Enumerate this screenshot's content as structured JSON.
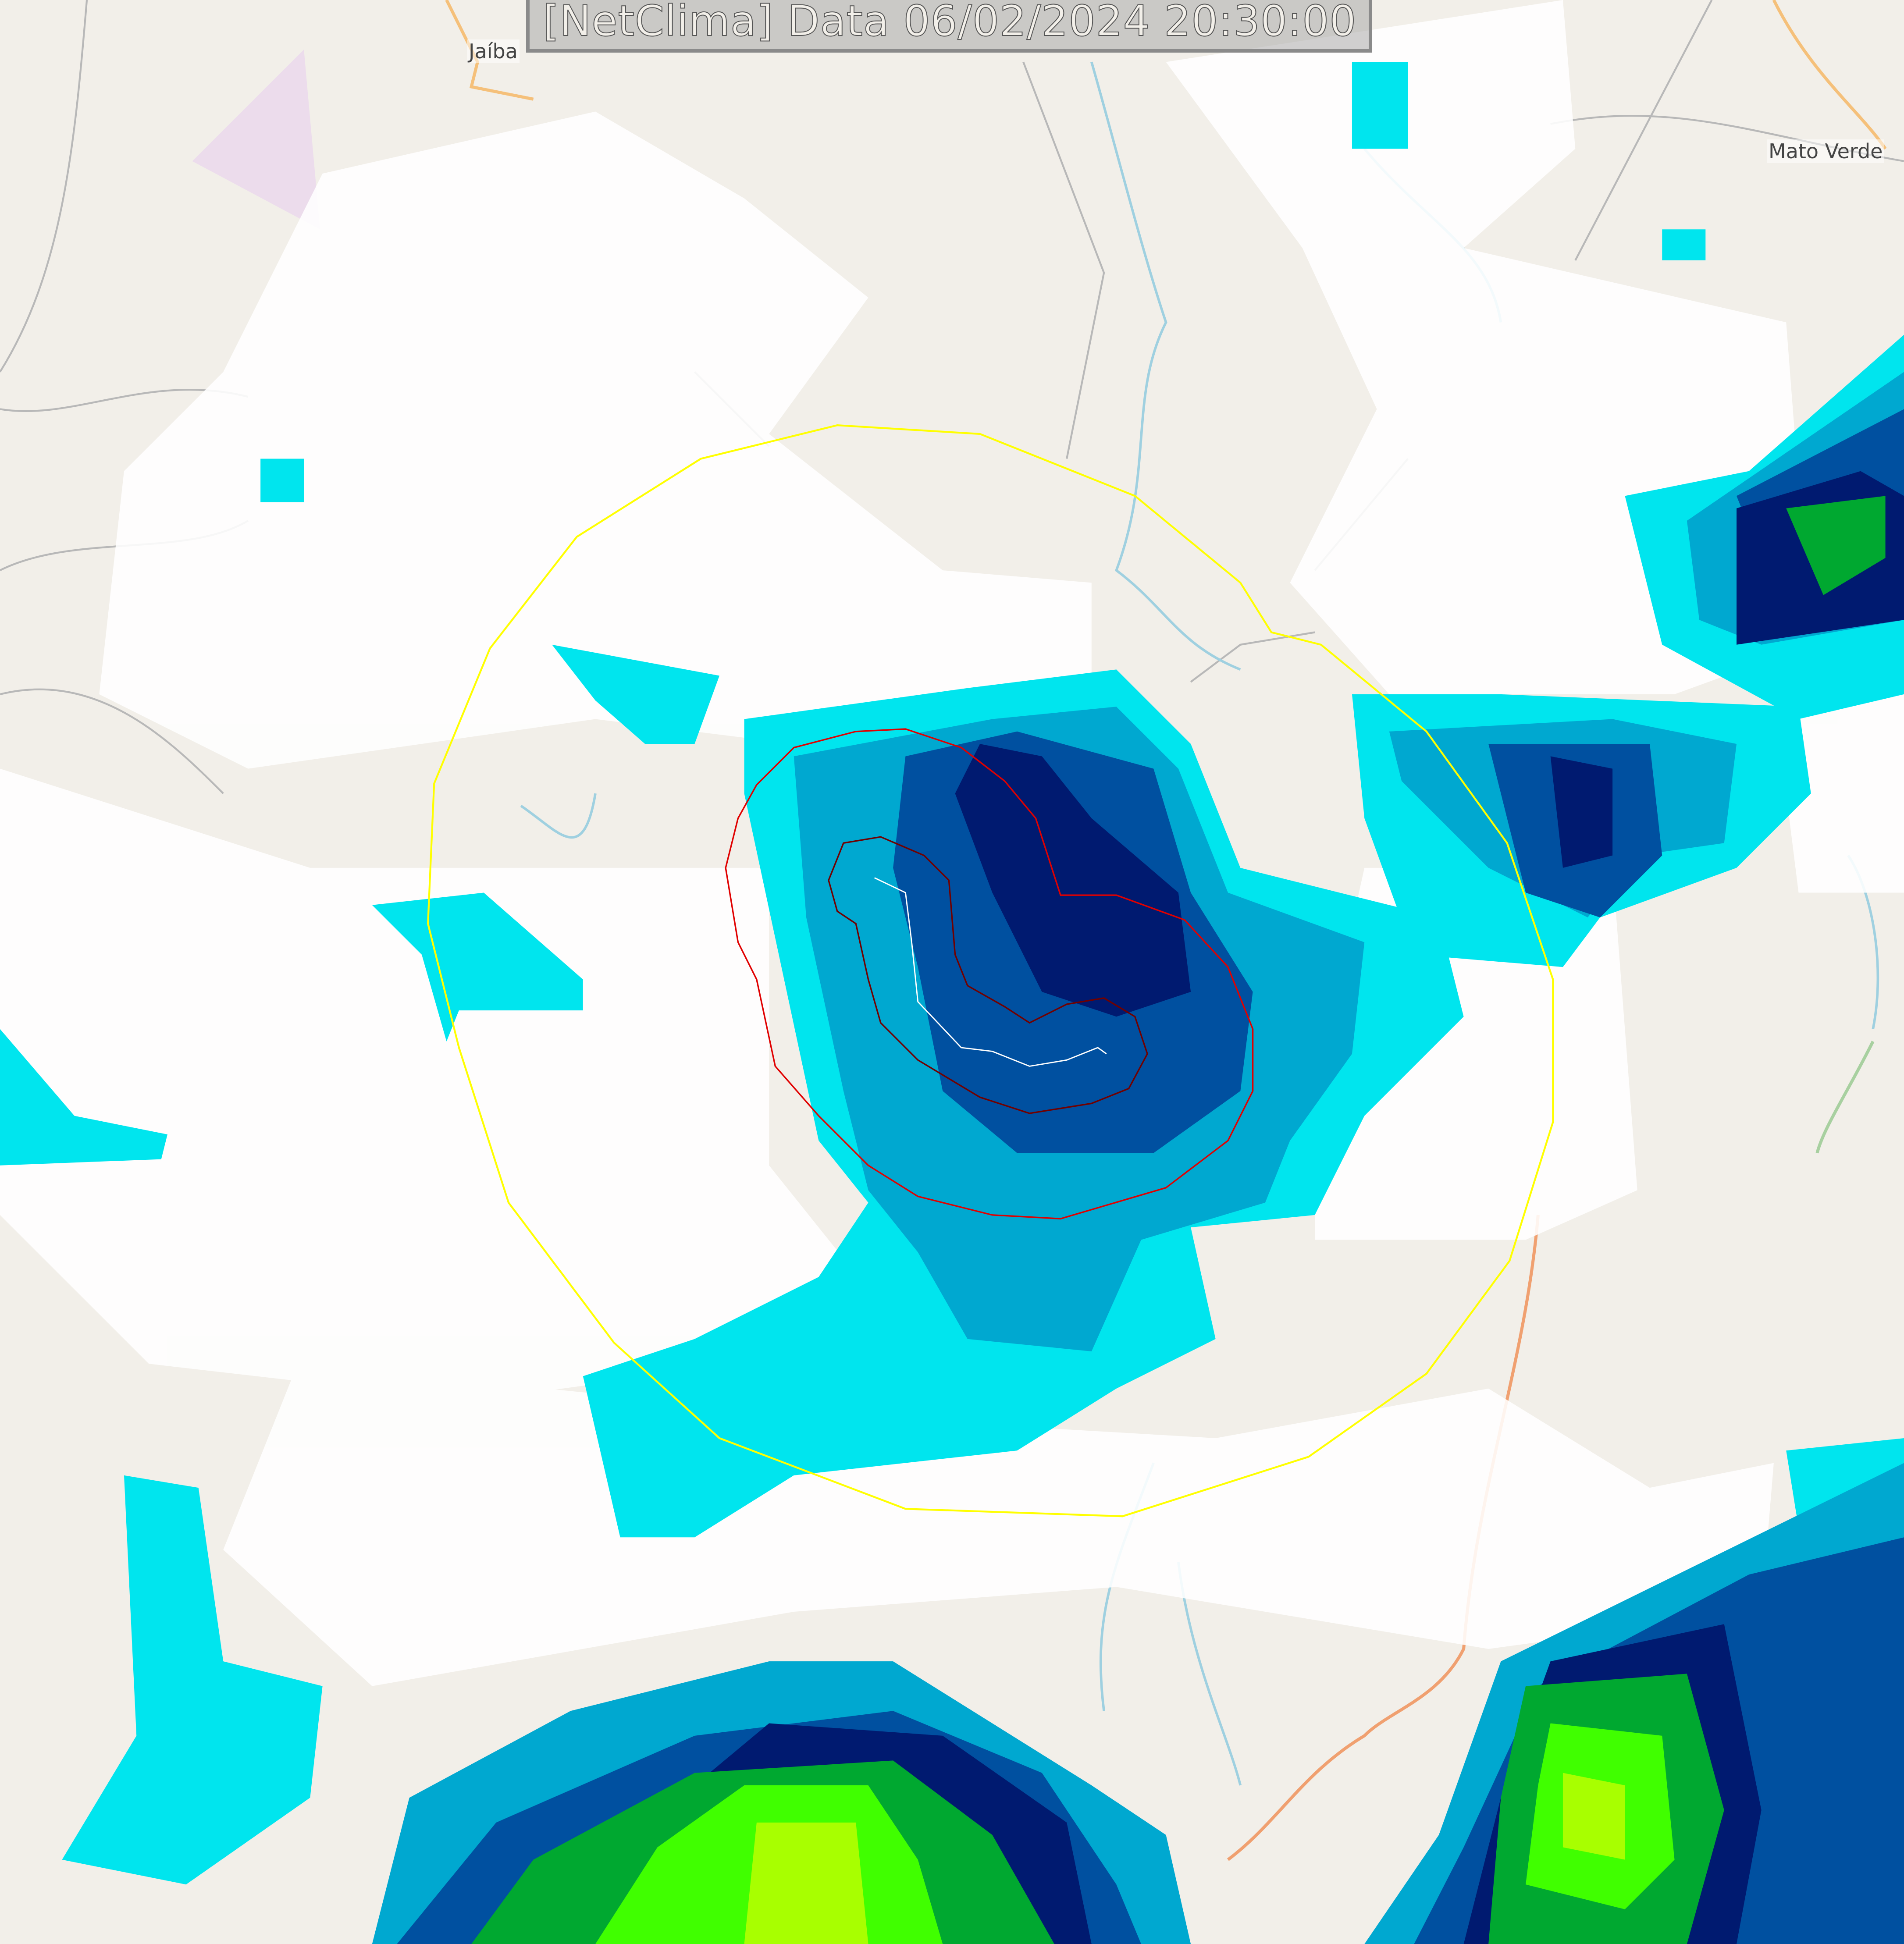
{
  "title": "[NetClima] Data 06/02/2024 20:30:00",
  "places": [
    {
      "name": "Jaíba"
    },
    {
      "name": "Mato Verde"
    }
  ],
  "colors": {
    "land": "#f2efe9",
    "cloud": "#ffffff",
    "radar_light": "#00e5ee",
    "radar_mid": "#00a8d0",
    "radar_deep": "#0050a0",
    "radar_dark": "#001a70",
    "radar_green": "#00c020",
    "radar_lime": "#a8ff00",
    "range_ring": "#ffff00",
    "contour_outer": "#e00000",
    "contour_inner": "#700000",
    "track": "#ffffff",
    "river": "#9fd0e0",
    "road": "#f5c07a",
    "boundary": "#b8b8b8"
  }
}
